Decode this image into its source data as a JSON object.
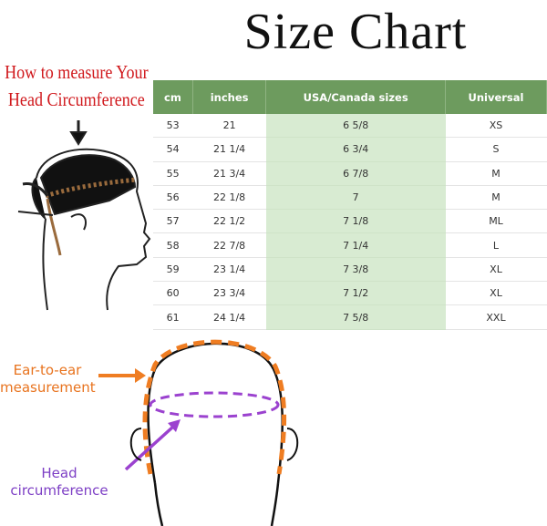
{
  "title": "Size Chart",
  "how_to": {
    "lines": [
      "How to measure Your",
      "Head Circumference"
    ]
  },
  "table": {
    "header": [
      "cm",
      "inches",
      "USA/Canada sizes",
      "Universal"
    ],
    "rows": [
      [
        "53",
        "21",
        "6 5/8",
        "XS"
      ],
      [
        "54",
        "21 1/4",
        "6 3/4",
        "S"
      ],
      [
        "55",
        "21 3/4",
        "6 7/8",
        "M"
      ],
      [
        "56",
        "22 1/8",
        "7",
        "M"
      ],
      [
        "57",
        "22 1/2",
        "7 1/8",
        "ML"
      ],
      [
        "58",
        "22 7/8",
        "7 1/4",
        "L"
      ],
      [
        "59",
        "23 1/4",
        "7 3/8",
        "XL"
      ],
      [
        "60",
        "23 3/4",
        "7 1/2",
        "XL"
      ],
      [
        "61",
        "24 1/4",
        "7 5/8",
        "XXL"
      ]
    ]
  },
  "diagram": {
    "ear_label": "Ear-to-ear measurement",
    "circumference_label": "Head circumference"
  }
}
